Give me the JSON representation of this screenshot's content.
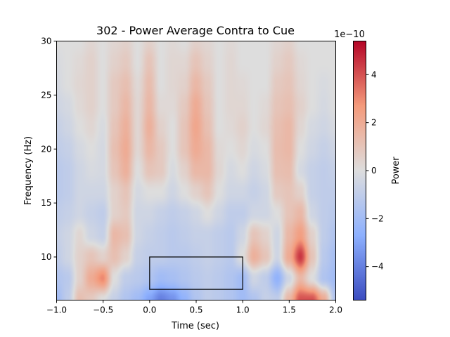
{
  "chart_data": {
    "type": "heatmap",
    "title": "302 - Power Average Contra to Cue",
    "xlabel": "Time (sec)",
    "ylabel": "Frequency (Hz)",
    "xlim": [
      -1.0,
      2.0
    ],
    "ylim": [
      6,
      30
    ],
    "xticks": [
      "−1.0",
      "−0.5",
      "0.0",
      "0.5",
      "1.0",
      "1.5",
      "2.0"
    ],
    "xtick_values": [
      -1.0,
      -0.5,
      0.0,
      0.5,
      1.0,
      1.5,
      2.0
    ],
    "yticks": [
      "10",
      "15",
      "20",
      "25",
      "30"
    ],
    "ytick_values": [
      10,
      15,
      20,
      25,
      30
    ],
    "colormap": "coolwarm",
    "colormap_stops": [
      "#3b4cc0",
      "#8db0fe",
      "#dddddd",
      "#f49a7b",
      "#b40426"
    ],
    "colorbar": {
      "label": "Power",
      "offset_text": "1e−10",
      "range": [
        -5.4,
        5.4
      ],
      "ticks": [
        "−4",
        "−2",
        "0",
        "2",
        "4"
      ],
      "tick_values": [
        -4,
        -2,
        0,
        2,
        4
      ]
    },
    "grid": false,
    "rectangle": {
      "time": [
        0.0,
        1.0
      ],
      "freq": [
        7,
        10
      ],
      "color": "#000000"
    },
    "times": [
      -1,
      -0.875,
      -0.75,
      -0.625,
      -0.5,
      -0.375,
      -0.25,
      -0.125,
      0,
      0.125,
      0.25,
      0.375,
      0.5,
      0.625,
      0.75,
      0.875,
      1,
      1.125,
      1.25,
      1.375,
      1.5,
      1.625,
      1.75,
      1.875,
      2
    ],
    "freqs": [
      30,
      28,
      26,
      24,
      22,
      20,
      18,
      16,
      14,
      12,
      10,
      8,
      6
    ],
    "values_unit": "1e-10",
    "values": [
      [
        0,
        0,
        0,
        0.3,
        0,
        0.3,
        0.5,
        0,
        0.5,
        0,
        0.2,
        0,
        0.5,
        0.3,
        0,
        0.2,
        0,
        0,
        0,
        0.3,
        0.5,
        0,
        0,
        0,
        0
      ],
      [
        -0.2,
        0,
        0.2,
        0.5,
        0,
        0.5,
        0.8,
        0,
        1,
        0,
        0.3,
        0.3,
        1,
        0.5,
        0,
        0.3,
        0,
        0,
        0,
        0.5,
        0.8,
        0.2,
        0,
        0,
        0
      ],
      [
        -0.3,
        0,
        0.3,
        0.5,
        0,
        0.8,
        1.2,
        0.2,
        1.3,
        0,
        0.3,
        0.5,
        1.5,
        0.8,
        0,
        0.3,
        0.2,
        0,
        0,
        0.8,
        1,
        0.3,
        0,
        -0.2,
        0
      ],
      [
        -0.5,
        -0.3,
        0.2,
        0.5,
        0,
        0.8,
        1.5,
        0.3,
        1.5,
        0.2,
        0.2,
        0.8,
        2,
        1,
        0,
        0.3,
        0.3,
        0,
        0.2,
        1,
        1.2,
        0.5,
        0,
        -0.3,
        0
      ],
      [
        -0.8,
        -0.5,
        0,
        0.3,
        -0.2,
        1,
        1.8,
        0.3,
        1.8,
        0.5,
        0,
        1,
        2.2,
        1.2,
        0,
        0.2,
        0.5,
        0,
        0.3,
        1.2,
        1.5,
        0.3,
        -0.3,
        -0.5,
        -0.2
      ],
      [
        -1,
        -0.8,
        -0.3,
        0,
        -0.3,
        1.2,
        2,
        0.3,
        1.5,
        0.8,
        0,
        1,
        2,
        1.5,
        0.2,
        0,
        0.3,
        -0.2,
        0,
        1.3,
        1.5,
        0,
        -0.5,
        -0.8,
        -0.5
      ],
      [
        -1.2,
        -1,
        -0.5,
        -0.2,
        -0.3,
        1,
        1.8,
        0,
        1,
        0.8,
        -0.2,
        0.5,
        1.5,
        1.5,
        0.3,
        -0.3,
        0,
        -0.5,
        -0.2,
        1.2,
        1.3,
        -0.3,
        -0.8,
        -1,
        -0.8
      ],
      [
        -1.2,
        -1,
        -0.5,
        -0.5,
        -0.5,
        0.5,
        1,
        -0.3,
        0,
        0,
        -0.5,
        0,
        0.5,
        1,
        0,
        -0.5,
        -0.5,
        -0.8,
        -0.5,
        0.8,
        1,
        0.5,
        -0.8,
        -1,
        -1
      ],
      [
        -1,
        -0.8,
        -0.5,
        -0.8,
        -1,
        0.5,
        0.8,
        -0.5,
        -0.5,
        -0.8,
        -1,
        -0.8,
        -0.5,
        0,
        -0.5,
        -1,
        -1,
        -0.5,
        -0.5,
        0,
        1,
        1.5,
        -0.5,
        -1,
        -1.2
      ],
      [
        -0.8,
        -0.5,
        0.3,
        -0.5,
        -0.8,
        1.5,
        1.2,
        -0.5,
        -0.8,
        -1,
        -1.2,
        -1,
        -0.8,
        -0.8,
        -1,
        -1.2,
        -0.5,
        1,
        0.5,
        -0.5,
        1.5,
        2.5,
        0.5,
        -1,
        -1.5
      ],
      [
        -1,
        -0.5,
        0.5,
        1,
        0.5,
        1.2,
        0.5,
        -0.8,
        -1,
        -1,
        -1.2,
        -1.2,
        -1,
        -0.8,
        -1,
        -1.2,
        0,
        1.8,
        1,
        -0.5,
        2,
        4.5,
        1,
        -1.2,
        -1.8
      ],
      [
        -1.5,
        -1.2,
        0.5,
        2,
        3,
        0,
        -1,
        -1.2,
        -1.5,
        -2,
        -1.8,
        -1.5,
        -1.2,
        -1,
        -1.2,
        -1.5,
        -2,
        -0.5,
        -1,
        -2.5,
        -0.5,
        1.5,
        0,
        -1.5,
        -2
      ],
      [
        -2,
        -1,
        1.2,
        0.8,
        0,
        -0.8,
        -1.5,
        -2,
        -3,
        -4,
        -3.5,
        -2.5,
        -1.5,
        -1,
        -1.2,
        -1.5,
        -2,
        -1.5,
        -0.8,
        -1,
        1.5,
        4,
        4,
        2,
        -1.5
      ]
    ]
  }
}
